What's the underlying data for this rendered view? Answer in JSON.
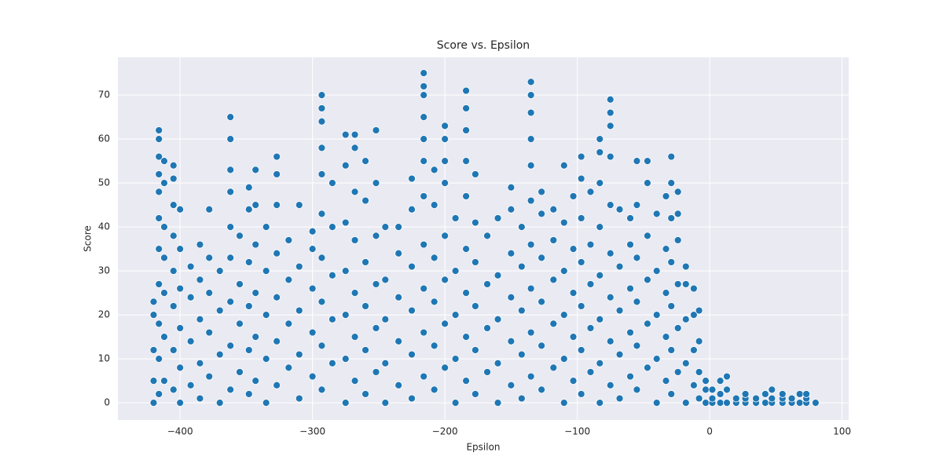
{
  "chart_data": {
    "type": "scatter",
    "title": "Score vs. Epsilon",
    "x_label": "Epsilon",
    "y_label": "Score",
    "color": "#1f77b4",
    "grid": true,
    "xlim": [
      -447,
      105
    ],
    "ylim": [
      -3.9,
      78.6
    ],
    "xticks": [
      {
        "value": -400,
        "label": "−400"
      },
      {
        "value": -300,
        "label": "−300"
      },
      {
        "value": -200,
        "label": "−200"
      },
      {
        "value": -100,
        "label": "−100"
      },
      0,
      100
    ],
    "yticks": [
      0,
      10,
      20,
      30,
      40,
      50,
      60,
      70
    ],
    "x": [
      -420,
      -420,
      -420,
      -420,
      -420,
      -416,
      -416,
      -416,
      -416,
      -416,
      -416,
      -416,
      -416,
      -416,
      -416,
      -416,
      -412,
      -412,
      -412,
      -412,
      -412,
      -412,
      -412,
      -405,
      -405,
      -405,
      -405,
      -405,
      -405,
      -405,
      -405,
      -400,
      -400,
      -400,
      -400,
      -400,
      -400,
      -392,
      -392,
      -392,
      -392,
      -385,
      -385,
      -385,
      -385,
      -385,
      -378,
      -378,
      -378,
      -378,
      -378,
      -370,
      -370,
      -370,
      -370,
      -362,
      -362,
      -362,
      -362,
      -362,
      -362,
      -362,
      -362,
      -362,
      -355,
      -355,
      -355,
      -355,
      -348,
      -348,
      -348,
      -348,
      -348,
      -348,
      -343,
      -343,
      -343,
      -343,
      -343,
      -343,
      -335,
      -335,
      -335,
      -335,
      -335,
      -327,
      -327,
      -327,
      -327,
      -327,
      -327,
      -327,
      -318,
      -318,
      -318,
      -318,
      -310,
      -310,
      -310,
      -310,
      -310,
      -300,
      -300,
      -300,
      -300,
      -300,
      -293,
      -293,
      -293,
      -293,
      -293,
      -293,
      -293,
      -293,
      -293,
      -293,
      -285,
      -285,
      -285,
      -285,
      -285,
      -275,
      -275,
      -275,
      -275,
      -275,
      -275,
      -275,
      -268,
      -268,
      -268,
      -268,
      -268,
      -268,
      -268,
      -260,
      -260,
      -260,
      -260,
      -260,
      -260,
      -252,
      -252,
      -252,
      -252,
      -252,
      -252,
      -245,
      -245,
      -245,
      -245,
      -245,
      -235,
      -235,
      -235,
      -235,
      -235,
      -225,
      -225,
      -225,
      -225,
      -225,
      -225,
      -216,
      -216,
      -216,
      -216,
      -216,
      -216,
      -216,
      -216,
      -216,
      -216,
      -216,
      -208,
      -208,
      -208,
      -208,
      -208,
      -208,
      -200,
      -200,
      -200,
      -200,
      -200,
      -200,
      -200,
      -200,
      -192,
      -192,
      -192,
      -192,
      -192,
      -184,
      -184,
      -184,
      -184,
      -184,
      -184,
      -184,
      -184,
      -184,
      -177,
      -177,
      -177,
      -177,
      -177,
      -177,
      -168,
      -168,
      -168,
      -168,
      -160,
      -160,
      -160,
      -160,
      -160,
      -150,
      -150,
      -150,
      -150,
      -150,
      -150,
      -142,
      -142,
      -142,
      -142,
      -142,
      -135,
      -135,
      -135,
      -135,
      -135,
      -135,
      -135,
      -135,
      -135,
      -135,
      -127,
      -127,
      -127,
      -127,
      -127,
      -127,
      -118,
      -118,
      -118,
      -118,
      -118,
      -110,
      -110,
      -110,
      -110,
      -110,
      -110,
      -103,
      -103,
      -103,
      -103,
      -103,
      -97,
      -97,
      -97,
      -97,
      -97,
      -97,
      -97,
      -90,
      -90,
      -90,
      -90,
      -90,
      -83,
      -83,
      -83,
      -83,
      -83,
      -83,
      -83,
      -83,
      -75,
      -75,
      -75,
      -75,
      -75,
      -75,
      -75,
      -75,
      -75,
      -68,
      -68,
      -68,
      -68,
      -68,
      -60,
      -60,
      -60,
      -60,
      -60,
      -55,
      -55,
      -55,
      -55,
      -55,
      -55,
      -47,
      -47,
      -47,
      -47,
      -47,
      -47,
      -40,
      -40,
      -40,
      -40,
      -40,
      -33,
      -33,
      -33,
      -33,
      -33,
      -29,
      -29,
      -29,
      -29,
      -29,
      -29,
      -29,
      -24,
      -24,
      -24,
      -24,
      -24,
      -24,
      -18,
      -18,
      -18,
      -18,
      -18,
      -12,
      -12,
      -12,
      -12,
      -8,
      -8,
      -8,
      -8,
      -3,
      -3,
      -3,
      2,
      2,
      2,
      8,
      8,
      8,
      13,
      13,
      13,
      20,
      20,
      27,
      27,
      27,
      35,
      35,
      42,
      42,
      47,
      47,
      47,
      55,
      55,
      55,
      62,
      62,
      68,
      68,
      73,
      73,
      73,
      80
    ],
    "y": [
      0,
      5,
      12,
      20,
      23,
      2,
      10,
      18,
      27,
      35,
      42,
      48,
      52,
      56,
      60,
      62,
      5,
      15,
      25,
      33,
      40,
      50,
      55,
      3,
      12,
      22,
      30,
      38,
      45,
      51,
      54,
      0,
      8,
      17,
      26,
      35,
      44,
      4,
      14,
      24,
      31,
      1,
      9,
      19,
      28,
      36,
      6,
      16,
      25,
      33,
      44,
      0,
      11,
      21,
      30,
      3,
      13,
      23,
      33,
      40,
      48,
      53,
      60,
      65,
      7,
      18,
      27,
      38,
      2,
      12,
      22,
      32,
      44,
      49,
      5,
      15,
      25,
      36,
      45,
      53,
      0,
      10,
      20,
      30,
      40,
      4,
      14,
      24,
      34,
      45,
      52,
      56,
      8,
      18,
      28,
      37,
      1,
      11,
      21,
      31,
      45,
      6,
      16,
      26,
      35,
      39,
      3,
      13,
      23,
      33,
      43,
      52,
      58,
      64,
      67,
      70,
      9,
      19,
      29,
      40,
      50,
      0,
      10,
      20,
      30,
      41,
      54,
      61,
      5,
      15,
      25,
      37,
      48,
      58,
      61,
      2,
      12,
      22,
      32,
      46,
      55,
      7,
      17,
      27,
      38,
      50,
      62,
      0,
      9,
      19,
      28,
      40,
      4,
      14,
      24,
      34,
      40,
      1,
      11,
      21,
      31,
      44,
      51,
      6,
      16,
      26,
      36,
      47,
      55,
      60,
      65,
      70,
      72,
      75,
      3,
      13,
      23,
      33,
      45,
      53,
      8,
      18,
      28,
      38,
      50,
      55,
      60,
      63,
      0,
      10,
      20,
      30,
      42,
      5,
      15,
      25,
      35,
      47,
      55,
      62,
      67,
      71,
      2,
      12,
      22,
      32,
      41,
      52,
      7,
      17,
      27,
      38,
      0,
      9,
      19,
      29,
      42,
      4,
      14,
      24,
      34,
      44,
      49,
      1,
      11,
      21,
      31,
      40,
      6,
      16,
      26,
      36,
      46,
      54,
      60,
      66,
      70,
      73,
      3,
      13,
      23,
      33,
      43,
      48,
      8,
      18,
      28,
      37,
      44,
      0,
      10,
      20,
      30,
      41,
      54,
      5,
      15,
      25,
      35,
      47,
      2,
      12,
      22,
      32,
      42,
      51,
      56,
      7,
      17,
      27,
      36,
      48,
      0,
      9,
      19,
      29,
      40,
      50,
      57,
      60,
      4,
      14,
      24,
      34,
      45,
      56,
      63,
      66,
      69,
      1,
      11,
      21,
      31,
      44,
      6,
      16,
      26,
      36,
      42,
      3,
      13,
      23,
      33,
      45,
      55,
      8,
      18,
      28,
      38,
      50,
      55,
      0,
      10,
      20,
      30,
      43,
      5,
      15,
      25,
      35,
      47,
      2,
      12,
      22,
      32,
      42,
      50,
      56,
      7,
      17,
      27,
      37,
      43,
      48,
      0,
      9,
      19,
      27,
      31,
      4,
      12,
      20,
      26,
      1,
      7,
      14,
      21,
      0,
      3,
      5,
      0,
      1,
      3,
      0,
      2,
      5,
      0,
      3,
      6,
      0,
      1,
      0,
      1,
      2,
      0,
      1,
      0,
      2,
      0,
      1,
      3,
      0,
      1,
      2,
      0,
      1,
      0,
      2,
      0,
      1,
      2,
      0
    ]
  }
}
